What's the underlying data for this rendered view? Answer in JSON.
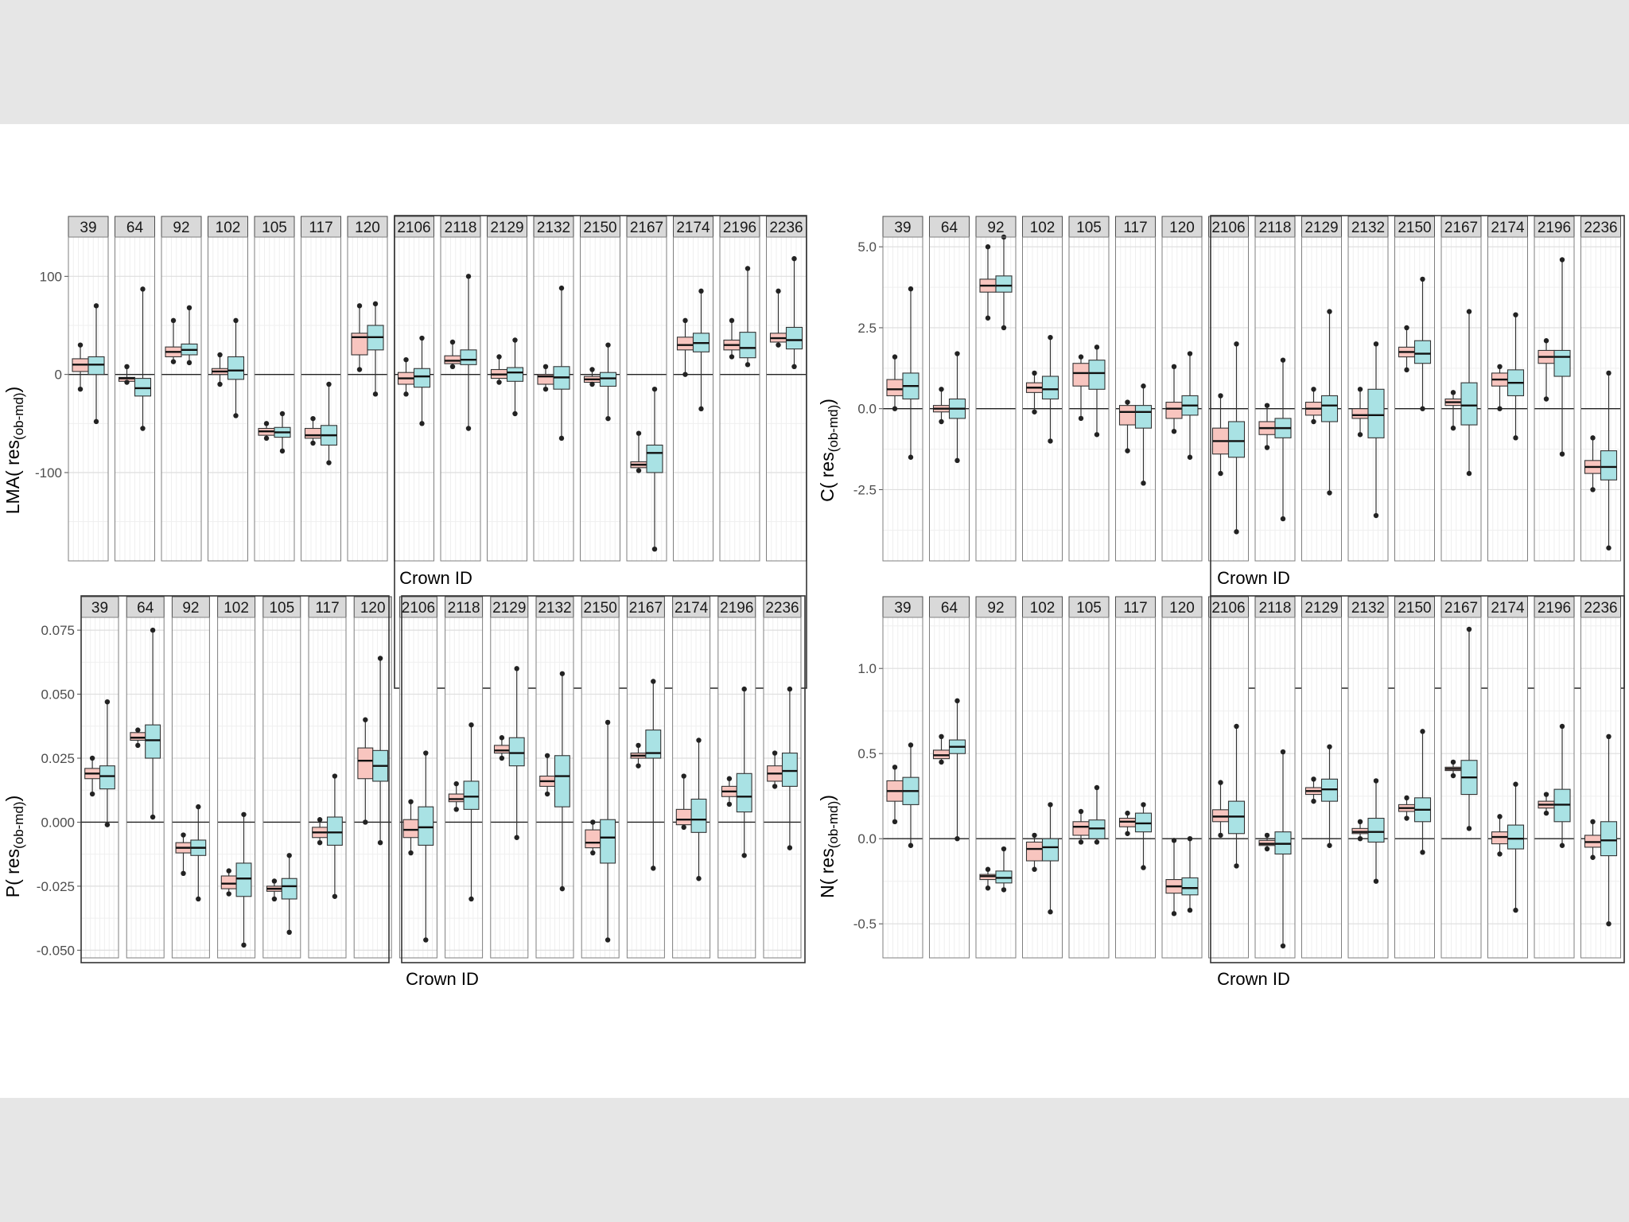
{
  "colors": {
    "group1": "#F8C5BF",
    "group2": "#A9E2E4",
    "outline": "#333333",
    "grid_major": "#dedede",
    "grid_minor": "#efefef",
    "strip_fill": "#d9d9d9"
  },
  "chart_data": [
    {
      "type": "boxplot",
      "panel": "top-left",
      "ylabel_main": "LMA( res",
      "ylabel_sub": "(ob-md)",
      "ylabel_end": ")",
      "xlabel": "Crown ID",
      "ylim": [
        -190,
        140
      ],
      "yticks": [
        100,
        0,
        -100
      ],
      "ytick_labels": [
        "100",
        "0",
        "-100"
      ],
      "facets": [
        "39",
        "64",
        "92",
        "102",
        "105",
        "117",
        "120",
        "2106",
        "2118",
        "2129",
        "2132",
        "2150",
        "2167",
        "2174",
        "2196",
        "2236"
      ],
      "boxes": [
        [
          [
            -15,
            3,
            10,
            16,
            30
          ],
          [
            -48,
            0,
            10,
            18,
            70
          ]
        ],
        [
          [
            -8,
            -7,
            -4,
            -3,
            8
          ],
          [
            -55,
            -22,
            -14,
            -4,
            87
          ]
        ],
        [
          [
            13,
            18,
            23,
            28,
            55
          ],
          [
            12,
            20,
            25,
            31,
            68
          ]
        ],
        [
          [
            -10,
            0,
            3,
            6,
            20
          ],
          [
            -42,
            -5,
            4,
            18,
            55
          ]
        ],
        [
          [
            -65,
            -62,
            -58,
            -55,
            -50
          ],
          [
            -78,
            -64,
            -59,
            -54,
            -40
          ]
        ],
        [
          [
            -70,
            -65,
            -62,
            -55,
            -45
          ],
          [
            -90,
            -72,
            -62,
            -52,
            -10
          ]
        ],
        [
          [
            5,
            20,
            38,
            42,
            70
          ],
          [
            -20,
            25,
            38,
            50,
            72
          ]
        ],
        [
          [
            -20,
            -10,
            -4,
            2,
            15
          ],
          [
            -50,
            -13,
            -2,
            6,
            37
          ]
        ],
        [
          [
            8,
            11,
            14,
            19,
            33
          ],
          [
            -55,
            10,
            15,
            25,
            100
          ]
        ],
        [
          [
            -8,
            -4,
            0,
            5,
            18
          ],
          [
            -40,
            -7,
            2,
            7,
            35
          ]
        ],
        [
          [
            -15,
            -10,
            -2,
            0,
            8
          ],
          [
            -65,
            -15,
            -3,
            8,
            88
          ]
        ],
        [
          [
            -10,
            -8,
            -5,
            -2,
            5
          ],
          [
            -45,
            -12,
            -4,
            2,
            30
          ]
        ],
        [
          [
            -98,
            -95,
            -92,
            -89,
            -60
          ],
          [
            -178,
            -100,
            -80,
            -72,
            -15
          ]
        ],
        [
          [
            0,
            25,
            30,
            38,
            55
          ],
          [
            -35,
            23,
            32,
            42,
            85
          ]
        ],
        [
          [
            18,
            25,
            30,
            35,
            55
          ],
          [
            10,
            17,
            27,
            43,
            108
          ]
        ],
        [
          [
            30,
            33,
            37,
            42,
            85
          ],
          [
            8,
            26,
            35,
            48,
            118
          ]
        ]
      ]
    },
    {
      "type": "boxplot",
      "panel": "top-right",
      "ylabel_main": "C( res",
      "ylabel_sub": "(ob-md)",
      "ylabel_end": ")",
      "xlabel": "Crown ID",
      "ylim": [
        -4.7,
        5.3
      ],
      "yticks": [
        5,
        2.5,
        0,
        -2.5
      ],
      "ytick_labels": [
        "5.0",
        "2.5",
        "0.0",
        "-2.5"
      ],
      "facets": [
        "39",
        "64",
        "92",
        "102",
        "105",
        "117",
        "120",
        "2106",
        "2118",
        "2129",
        "2132",
        "2150",
        "2167",
        "2174",
        "2196",
        "2236"
      ],
      "boxes": [
        [
          [
            0,
            0.4,
            0.6,
            0.9,
            1.6
          ],
          [
            -1.5,
            0.3,
            0.7,
            1.1,
            3.7
          ]
        ],
        [
          [
            -0.4,
            -0.1,
            0,
            0.1,
            0.6
          ],
          [
            -1.6,
            -0.3,
            0,
            0.3,
            1.7
          ]
        ],
        [
          [
            2.8,
            3.6,
            3.8,
            4,
            5
          ],
          [
            2.5,
            3.6,
            3.8,
            4.1,
            5.3
          ]
        ],
        [
          [
            -0.1,
            0.5,
            0.65,
            0.8,
            1.1
          ],
          [
            -1,
            0.3,
            0.6,
            1,
            2.2
          ]
        ],
        [
          [
            -0.3,
            0.7,
            1.1,
            1.4,
            1.6
          ],
          [
            -0.8,
            0.6,
            1.1,
            1.5,
            1.9
          ]
        ],
        [
          [
            -1.3,
            -0.5,
            -0.1,
            0.1,
            0.2
          ],
          [
            -2.3,
            -0.6,
            -0.1,
            0.1,
            0.7
          ]
        ],
        [
          [
            -0.7,
            -0.3,
            0,
            0.2,
            1.3
          ],
          [
            -1.5,
            -0.2,
            0.1,
            0.4,
            1.7
          ]
        ],
        [
          [
            -2,
            -1.4,
            -1,
            -0.6,
            0.4
          ],
          [
            -3.8,
            -1.5,
            -1,
            -0.4,
            2
          ]
        ],
        [
          [
            -1.2,
            -0.8,
            -0.6,
            -0.4,
            0.1
          ],
          [
            -3.4,
            -0.9,
            -0.6,
            -0.3,
            1.5
          ]
        ],
        [
          [
            -0.4,
            -0.2,
            0,
            0.2,
            0.6
          ],
          [
            -2.6,
            -0.4,
            0.1,
            0.4,
            3
          ]
        ],
        [
          [
            -0.8,
            -0.3,
            -0.2,
            0,
            0.6
          ],
          [
            -3.3,
            -0.9,
            -0.2,
            0.6,
            2
          ]
        ],
        [
          [
            1.2,
            1.6,
            1.75,
            1.9,
            2.5
          ],
          [
            0,
            1.4,
            1.7,
            2.1,
            4
          ]
        ],
        [
          [
            -0.6,
            0.1,
            0.2,
            0.3,
            0.5
          ],
          [
            -2,
            -0.5,
            0.1,
            0.8,
            3
          ]
        ],
        [
          [
            0,
            0.7,
            0.9,
            1.1,
            1.3
          ],
          [
            -0.9,
            0.4,
            0.8,
            1.2,
            2.9
          ]
        ],
        [
          [
            0.3,
            1.4,
            1.6,
            1.8,
            2.1
          ],
          [
            -1.4,
            1,
            1.6,
            1.8,
            4.6
          ]
        ],
        [
          [
            -2.5,
            -2.0,
            -1.8,
            -1.6,
            -0.9
          ],
          [
            -4.3,
            -2.2,
            -1.8,
            -1.3,
            1.1
          ]
        ]
      ]
    },
    {
      "type": "boxplot",
      "panel": "bottom-left",
      "ylabel_main": "P( res",
      "ylabel_sub": "(ob-md)",
      "ylabel_end": ")",
      "xlabel": "Crown ID",
      "ylim": [
        -0.053,
        0.08
      ],
      "yticks": [
        0.075,
        0.05,
        0.025,
        0,
        -0.025,
        -0.05
      ],
      "ytick_labels": [
        "0.075",
        "0.050",
        "0.025",
        "0.000",
        "-0.025",
        "-0.050"
      ],
      "facets": [
        "39",
        "64",
        "92",
        "102",
        "105",
        "117",
        "120",
        "2106",
        "2118",
        "2129",
        "2132",
        "2150",
        "2167",
        "2174",
        "2196",
        "2236"
      ],
      "boxes": [
        [
          [
            0.011,
            0.017,
            0.019,
            0.021,
            0.025
          ],
          [
            -0.001,
            0.013,
            0.018,
            0.022,
            0.047
          ]
        ],
        [
          [
            0.03,
            0.032,
            0.033,
            0.035,
            0.036
          ],
          [
            0.002,
            0.025,
            0.032,
            0.038,
            0.075
          ]
        ],
        [
          [
            -0.02,
            -0.012,
            -0.01,
            -0.008,
            -0.005
          ],
          [
            -0.03,
            -0.013,
            -0.01,
            -0.007,
            0.006
          ]
        ],
        [
          [
            -0.028,
            -0.026,
            -0.024,
            -0.021,
            -0.019
          ],
          [
            -0.048,
            -0.029,
            -0.022,
            -0.016,
            0.003
          ]
        ],
        [
          [
            -0.03,
            -0.027,
            -0.026,
            -0.025,
            -0.023
          ],
          [
            -0.043,
            -0.03,
            -0.025,
            -0.022,
            -0.013
          ]
        ],
        [
          [
            -0.008,
            -0.006,
            -0.004,
            -0.002,
            0.001
          ],
          [
            -0.029,
            -0.009,
            -0.004,
            0.002,
            0.018
          ]
        ],
        [
          [
            0,
            0.017,
            0.024,
            0.029,
            0.04
          ],
          [
            -0.008,
            0.016,
            0.022,
            0.028,
            0.064
          ]
        ],
        [
          [
            -0.012,
            -0.006,
            -0.003,
            0.001,
            0.008
          ],
          [
            -0.046,
            -0.009,
            -0.002,
            0.006,
            0.027
          ]
        ],
        [
          [
            0.005,
            0.008,
            0.009,
            0.011,
            0.015
          ],
          [
            -0.03,
            0.005,
            0.01,
            0.016,
            0.038
          ]
        ],
        [
          [
            0.025,
            0.027,
            0.028,
            0.03,
            0.033
          ],
          [
            -0.006,
            0.022,
            0.027,
            0.033,
            0.06
          ]
        ],
        [
          [
            0.011,
            0.014,
            0.016,
            0.018,
            0.026
          ],
          [
            -0.026,
            0.006,
            0.018,
            0.026,
            0.058
          ]
        ],
        [
          [
            -0.012,
            -0.01,
            -0.008,
            -0.003,
            0
          ],
          [
            -0.046,
            -0.016,
            -0.006,
            0.001,
            0.039
          ]
        ],
        [
          [
            0.022,
            0.025,
            0.026,
            0.027,
            0.03
          ],
          [
            -0.018,
            0.025,
            0.027,
            0.036,
            0.055
          ]
        ],
        [
          [
            -0.002,
            -0.001,
            0.001,
            0.005,
            0.018
          ],
          [
            -0.022,
            -0.004,
            0.001,
            0.009,
            0.032
          ]
        ],
        [
          [
            0.007,
            0.01,
            0.012,
            0.014,
            0.017
          ],
          [
            -0.013,
            0.004,
            0.01,
            0.019,
            0.052
          ]
        ],
        [
          [
            0.014,
            0.016,
            0.019,
            0.022,
            0.027
          ],
          [
            -0.01,
            0.014,
            0.02,
            0.027,
            0.052
          ]
        ]
      ]
    },
    {
      "type": "boxplot",
      "panel": "bottom-right",
      "ylabel_main": "N( res",
      "ylabel_sub": "(ob-md)",
      "ylabel_end": ")",
      "xlabel": "Crown ID",
      "ylim": [
        -0.7,
        1.3
      ],
      "yticks": [
        1,
        0.5,
        0,
        -0.5
      ],
      "ytick_labels": [
        "1.0",
        "0.5",
        "0.0",
        "-0.5"
      ],
      "facets": [
        "39",
        "64",
        "92",
        "102",
        "105",
        "117",
        "120",
        "2106",
        "2118",
        "2129",
        "2132",
        "2150",
        "2167",
        "2174",
        "2196",
        "2236"
      ],
      "boxes": [
        [
          [
            0.1,
            0.22,
            0.28,
            0.34,
            0.42
          ],
          [
            -0.04,
            0.2,
            0.28,
            0.36,
            0.55
          ]
        ],
        [
          [
            0.45,
            0.47,
            0.49,
            0.52,
            0.6
          ],
          [
            0,
            0.5,
            0.54,
            0.58,
            0.81
          ]
        ],
        [
          [
            -0.29,
            -0.24,
            -0.22,
            -0.21,
            -0.18
          ],
          [
            -0.3,
            -0.26,
            -0.23,
            -0.19,
            -0.06
          ]
        ],
        [
          [
            -0.18,
            -0.13,
            -0.06,
            -0.02,
            0.02
          ],
          [
            -0.43,
            -0.13,
            -0.05,
            0,
            0.2
          ]
        ],
        [
          [
            -0.02,
            0.02,
            0.07,
            0.1,
            0.16
          ],
          [
            -0.02,
            0,
            0.06,
            0.11,
            0.3
          ]
        ],
        [
          [
            0.03,
            0.07,
            0.1,
            0.12,
            0.15
          ],
          [
            -0.17,
            0.04,
            0.09,
            0.15,
            0.2
          ]
        ],
        [
          [
            -0.44,
            -0.32,
            -0.28,
            -0.24,
            -0.01
          ],
          [
            -0.42,
            -0.33,
            -0.29,
            -0.23,
            0
          ]
        ],
        [
          [
            0.02,
            0.1,
            0.13,
            0.17,
            0.33
          ],
          [
            -0.16,
            0.03,
            0.13,
            0.22,
            0.66
          ]
        ],
        [
          [
            -0.06,
            -0.04,
            -0.03,
            -0.01,
            0.02
          ],
          [
            -0.63,
            -0.09,
            -0.03,
            0.04,
            0.51
          ]
        ],
        [
          [
            0.22,
            0.26,
            0.28,
            0.3,
            0.35
          ],
          [
            -0.04,
            0.22,
            0.29,
            0.35,
            0.54
          ]
        ],
        [
          [
            0,
            0.03,
            0.04,
            0.06,
            0.1
          ],
          [
            -0.25,
            -0.02,
            0.04,
            0.12,
            0.34
          ]
        ],
        [
          [
            0.12,
            0.16,
            0.18,
            0.2,
            0.24
          ],
          [
            -0.08,
            0.1,
            0.17,
            0.24,
            0.63
          ]
        ],
        [
          [
            0.37,
            0.4,
            0.41,
            0.42,
            0.45
          ],
          [
            0.06,
            0.26,
            0.36,
            0.46,
            1.23
          ]
        ],
        [
          [
            -0.09,
            -0.03,
            0.01,
            0.04,
            0.13
          ],
          [
            -0.42,
            -0.06,
            0,
            0.08,
            0.32
          ]
        ],
        [
          [
            0.15,
            0.18,
            0.2,
            0.22,
            0.26
          ],
          [
            -0.04,
            0.1,
            0.2,
            0.29,
            0.66
          ]
        ],
        [
          [
            -0.11,
            -0.05,
            -0.02,
            0.02,
            0.1
          ],
          [
            -0.5,
            -0.1,
            -0.01,
            0.1,
            0.6
          ]
        ]
      ]
    }
  ]
}
